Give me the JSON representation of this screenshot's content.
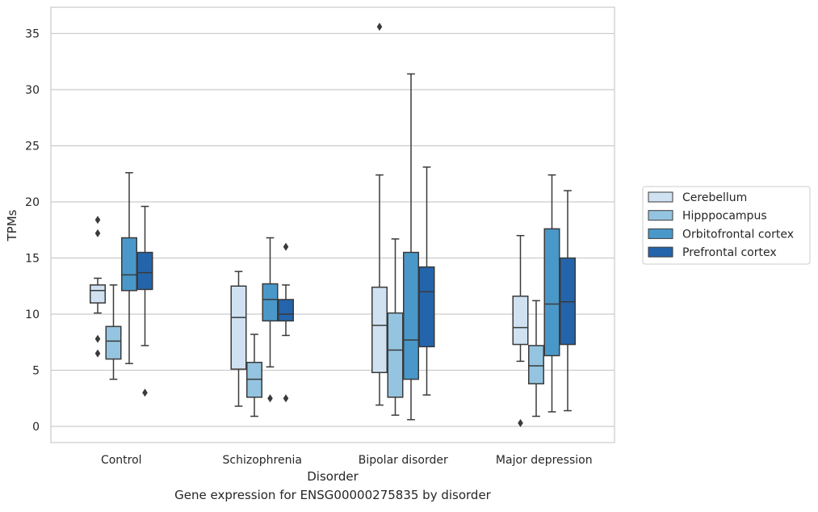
{
  "caption": "Gene expression for ENSG00000275835 by disorder",
  "chart_data": {
    "type": "box",
    "title": "",
    "xlabel": "Disorder",
    "ylabel": "TPMs",
    "ylim": [
      -1.4,
      37.3
    ],
    "yticks": [
      0,
      5,
      10,
      15,
      20,
      25,
      30,
      35
    ],
    "grid": true,
    "legend_position": "right",
    "categories": [
      "Control",
      "Schizophrenia",
      "Bipolar disorder",
      "Major depression"
    ],
    "series": [
      {
        "name": "Cerebellum",
        "color": "#d0e1f2",
        "boxes": [
          {
            "whisker_low": 10.1,
            "q1": 11.0,
            "median": 12.1,
            "q3": 12.6,
            "whisker_high": 13.2,
            "outliers": [
              18.4,
              17.2,
              7.8,
              6.5
            ]
          },
          {
            "whisker_low": 1.8,
            "q1": 5.1,
            "median": 9.7,
            "q3": 12.5,
            "whisker_high": 13.8,
            "outliers": []
          },
          {
            "whisker_low": 1.9,
            "q1": 4.8,
            "median": 9.0,
            "q3": 12.4,
            "whisker_high": 22.4,
            "outliers": [
              35.6
            ]
          },
          {
            "whisker_low": 5.8,
            "q1": 7.3,
            "median": 8.8,
            "q3": 11.6,
            "whisker_high": 17.0,
            "outliers": [
              0.3
            ]
          }
        ]
      },
      {
        "name": "Hipppocampus",
        "color": "#94c4df",
        "boxes": [
          {
            "whisker_low": 4.2,
            "q1": 6.0,
            "median": 7.6,
            "q3": 8.9,
            "whisker_high": 12.6,
            "outliers": []
          },
          {
            "whisker_low": 0.9,
            "q1": 2.6,
            "median": 4.2,
            "q3": 5.7,
            "whisker_high": 8.2,
            "outliers": []
          },
          {
            "whisker_low": 1.0,
            "q1": 2.6,
            "median": 6.8,
            "q3": 10.1,
            "whisker_high": 16.7,
            "outliers": []
          },
          {
            "whisker_low": 0.9,
            "q1": 3.8,
            "median": 5.4,
            "q3": 7.2,
            "whisker_high": 11.2,
            "outliers": []
          }
        ]
      },
      {
        "name": "Orbitofrontal cortex",
        "color": "#4a98c9",
        "boxes": [
          {
            "whisker_low": 5.6,
            "q1": 12.1,
            "median": 13.5,
            "q3": 16.8,
            "whisker_high": 22.6,
            "outliers": []
          },
          {
            "whisker_low": 5.3,
            "q1": 9.4,
            "median": 11.3,
            "q3": 12.7,
            "whisker_high": 16.8,
            "outliers": [
              2.5
            ]
          },
          {
            "whisker_low": 0.6,
            "q1": 4.2,
            "median": 7.7,
            "q3": 15.5,
            "whisker_high": 31.4,
            "outliers": []
          },
          {
            "whisker_low": 1.3,
            "q1": 6.3,
            "median": 10.9,
            "q3": 17.6,
            "whisker_high": 22.4,
            "outliers": []
          }
        ]
      },
      {
        "name": "Prefrontal cortex",
        "color": "#2464ab",
        "boxes": [
          {
            "whisker_low": 7.2,
            "q1": 12.2,
            "median": 13.7,
            "q3": 15.5,
            "whisker_high": 19.6,
            "outliers": [
              3.0
            ]
          },
          {
            "whisker_low": 8.1,
            "q1": 9.4,
            "median": 10.0,
            "q3": 11.3,
            "whisker_high": 12.6,
            "outliers": [
              16.0,
              2.5
            ]
          },
          {
            "whisker_low": 2.8,
            "q1": 7.1,
            "median": 12.0,
            "q3": 14.2,
            "whisker_high": 23.1,
            "outliers": []
          },
          {
            "whisker_low": 1.4,
            "q1": 7.3,
            "median": 11.1,
            "q3": 15.0,
            "whisker_high": 21.0,
            "outliers": []
          }
        ]
      }
    ]
  }
}
